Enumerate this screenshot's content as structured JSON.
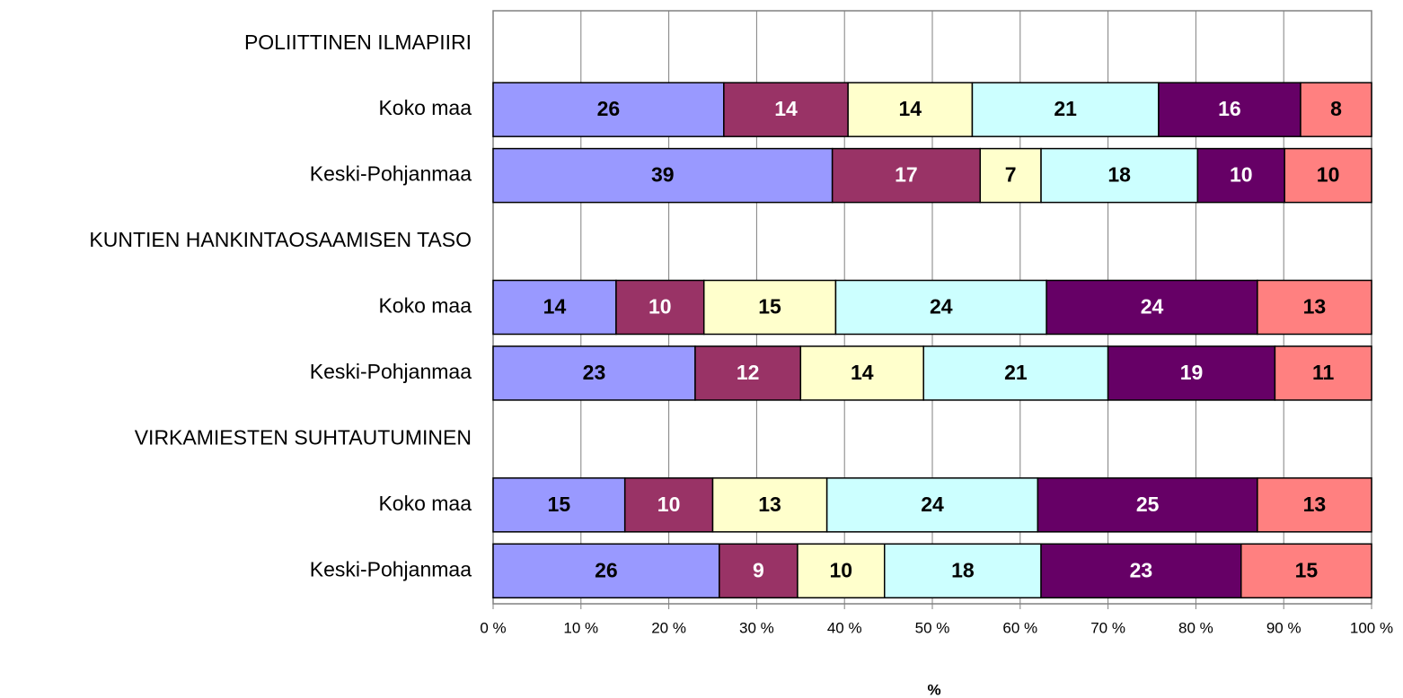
{
  "chart_data": {
    "type": "bar",
    "orientation": "horizontal",
    "stacking": "percent",
    "categories": [
      "POLIITTINEN ILMAPIIRI",
      "Koko maa",
      "Keski-Pohjanmaa",
      "KUNTIEN HANKINTAOSAAMISEN TASO",
      "Koko maa",
      "Keski-Pohjanmaa",
      "VIRKAMIESTEN SUHTAUTUMINEN",
      "Koko maa",
      "Keski-Pohjanmaa"
    ],
    "series": [
      {
        "color": "#9999ff",
        "values": [
          null,
          26,
          39,
          null,
          14,
          23,
          null,
          15,
          26
        ]
      },
      {
        "color": "#993366",
        "values": [
          null,
          14,
          17,
          null,
          10,
          12,
          null,
          10,
          9
        ]
      },
      {
        "color": "#ffffcc",
        "values": [
          null,
          14,
          7,
          null,
          15,
          14,
          null,
          13,
          10
        ]
      },
      {
        "color": "#ccffff",
        "values": [
          null,
          21,
          18,
          null,
          24,
          21,
          null,
          24,
          18
        ]
      },
      {
        "color": "#660066",
        "values": [
          null,
          16,
          10,
          null,
          24,
          19,
          null,
          25,
          23
        ]
      },
      {
        "color": "#ff8080",
        "values": [
          null,
          8,
          10,
          null,
          13,
          11,
          null,
          13,
          15
        ]
      }
    ],
    "xlabel": "%",
    "xlim": [
      0,
      100
    ],
    "xticks": [
      {
        "value": 0,
        "label": "0 %"
      },
      {
        "value": 10,
        "label": "10 %"
      },
      {
        "value": 20,
        "label": "20 %"
      },
      {
        "value": 30,
        "label": "30 %"
      },
      {
        "value": 40,
        "label": "40 %"
      },
      {
        "value": 50,
        "label": "50 %"
      },
      {
        "value": 60,
        "label": "60 %"
      },
      {
        "value": 70,
        "label": "70 %"
      },
      {
        "value": 80,
        "label": "80 %"
      },
      {
        "value": 90,
        "label": "90 %"
      },
      {
        "value": 100,
        "label": "100 %"
      }
    ],
    "grid": true
  }
}
